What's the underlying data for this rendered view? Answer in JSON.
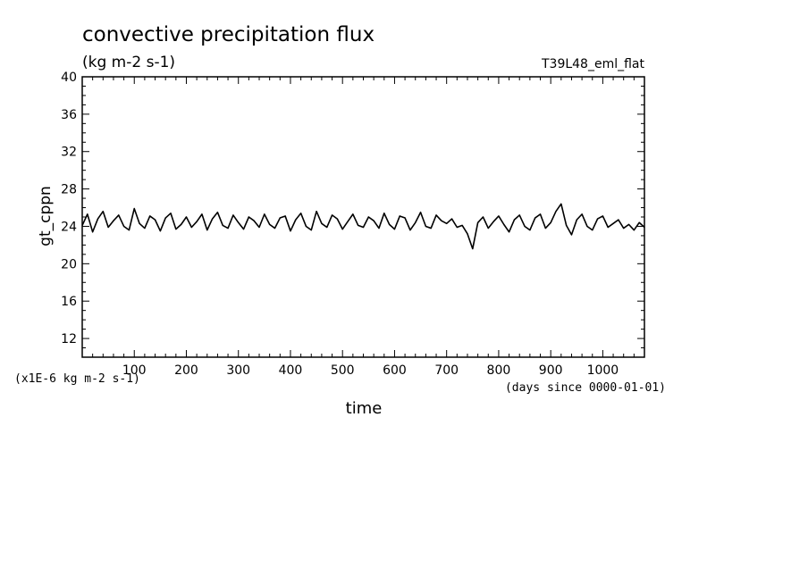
{
  "chart_data": {
    "type": "line",
    "title": "convective precipitation flux",
    "subtitle": "(kg m-2 s-1)",
    "experiment": "T39L48_eml_flat",
    "xlabel": "time",
    "xunits": "(days since 0000-01-01)",
    "ylabel": "gt_cppn",
    "yscale_note": "(x1E-6 kg m-2 s-1)",
    "xlim": [
      0,
      1080
    ],
    "ylim": [
      10,
      40
    ],
    "x_ticks": [
      100,
      200,
      300,
      400,
      500,
      600,
      700,
      800,
      900,
      1000
    ],
    "x_tick_labels": [
      "100",
      "200",
      "300",
      "400",
      "500",
      "600",
      "700",
      "800",
      "900",
      "1000"
    ],
    "y_ticks": [
      12,
      16,
      20,
      24,
      28,
      32,
      36,
      40
    ],
    "y_tick_labels": [
      "12",
      "16",
      "20",
      "24",
      "28",
      "32",
      "36",
      "40"
    ],
    "grid": false,
    "line_color": "#000000",
    "series": [
      {
        "x": [
          0,
          10,
          20,
          30,
          40,
          50,
          60,
          70,
          80,
          90,
          100,
          110,
          120,
          130,
          140,
          150,
          160,
          170,
          180,
          190,
          200,
          210,
          220,
          230,
          240,
          250,
          260,
          270,
          280,
          290,
          300,
          310,
          320,
          330,
          340,
          350,
          360,
          370,
          380,
          390,
          400,
          410,
          420,
          430,
          440,
          450,
          460,
          470,
          480,
          490,
          500,
          510,
          520,
          530,
          540,
          550,
          560,
          570,
          580,
          590,
          600,
          610,
          620,
          630,
          640,
          650,
          660,
          670,
          680,
          690,
          700,
          710,
          720,
          730,
          740,
          750,
          760,
          770,
          780,
          790,
          800,
          810,
          820,
          830,
          840,
          850,
          860,
          870,
          880,
          890,
          900,
          910,
          920,
          930,
          940,
          950,
          960,
          970,
          980,
          990,
          1000,
          1010,
          1020,
          1030,
          1040,
          1050,
          1060,
          1070,
          1080
        ],
        "y": [
          24.1,
          25.3,
          23.4,
          24.8,
          25.6,
          23.9,
          24.6,
          25.2,
          24.0,
          23.6,
          25.9,
          24.3,
          23.8,
          25.1,
          24.7,
          23.5,
          24.9,
          25.4,
          23.7,
          24.2,
          25.0,
          23.9,
          24.5,
          25.3,
          23.6,
          24.8,
          25.5,
          24.1,
          23.8,
          25.2,
          24.4,
          23.7,
          25.0,
          24.6,
          23.9,
          25.3,
          24.2,
          23.8,
          24.9,
          25.1,
          23.5,
          24.7,
          25.4,
          24.0,
          23.6,
          25.6,
          24.3,
          23.9,
          25.2,
          24.8,
          23.7,
          24.5,
          25.3,
          24.1,
          23.9,
          25.0,
          24.6,
          23.8,
          25.4,
          24.2,
          23.7,
          25.1,
          24.9,
          23.6,
          24.4,
          25.5,
          24.0,
          23.8,
          25.2,
          24.6,
          24.3,
          24.8,
          23.9,
          24.1,
          23.2,
          21.6,
          24.4,
          25.0,
          23.8,
          24.5,
          25.1,
          24.2,
          23.4,
          24.7,
          25.2,
          24.0,
          23.6,
          24.9,
          25.3,
          23.8,
          24.4,
          25.6,
          26.4,
          24.1,
          23.1,
          24.7,
          25.3,
          24.0,
          23.6,
          24.8,
          25.1,
          23.9,
          24.3,
          24.7,
          23.8,
          24.2,
          23.6,
          24.4,
          23.9
        ]
      }
    ]
  }
}
